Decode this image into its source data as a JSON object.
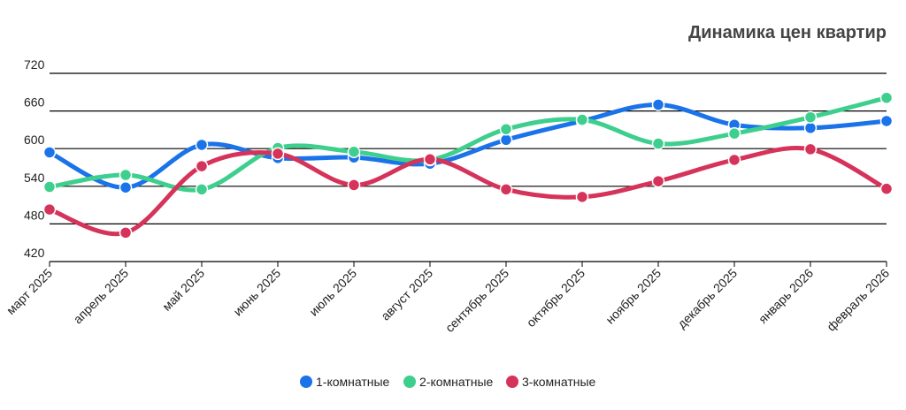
{
  "chart_data": {
    "type": "line",
    "title": "Динамика цен квартир",
    "xlabel": "",
    "ylabel": "",
    "categories": [
      "март 2025",
      "апрель 2025",
      "май 2025",
      "июнь 2025",
      "июль 2025",
      "август 2025",
      "сентябрь 2025",
      "октябрь 2025",
      "ноябрь 2025",
      "декабрь 2025",
      "январь 2026",
      "февраль 2026"
    ],
    "yticks": [
      "420",
      "480",
      "540",
      "600",
      "660",
      "720"
    ],
    "ylim": [
      420,
      720
    ],
    "grid": true,
    "legend_position": "bottom",
    "series": [
      {
        "name": "1-комнатные",
        "color": "#1a73e8",
        "values": [
          594,
          538,
          606,
          585,
          586,
          576,
          614,
          644,
          670,
          638,
          633,
          644
        ]
      },
      {
        "name": "2-комнатные",
        "color": "#3ecf8e",
        "values": [
          539,
          558,
          535,
          601,
          595,
          582,
          631,
          646,
          608,
          624,
          650,
          681
        ]
      },
      {
        "name": "3-комнатные",
        "color": "#d6335a",
        "values": [
          503,
          466,
          572,
          592,
          542,
          583,
          535,
          523,
          548,
          582,
          599,
          536
        ]
      }
    ]
  }
}
